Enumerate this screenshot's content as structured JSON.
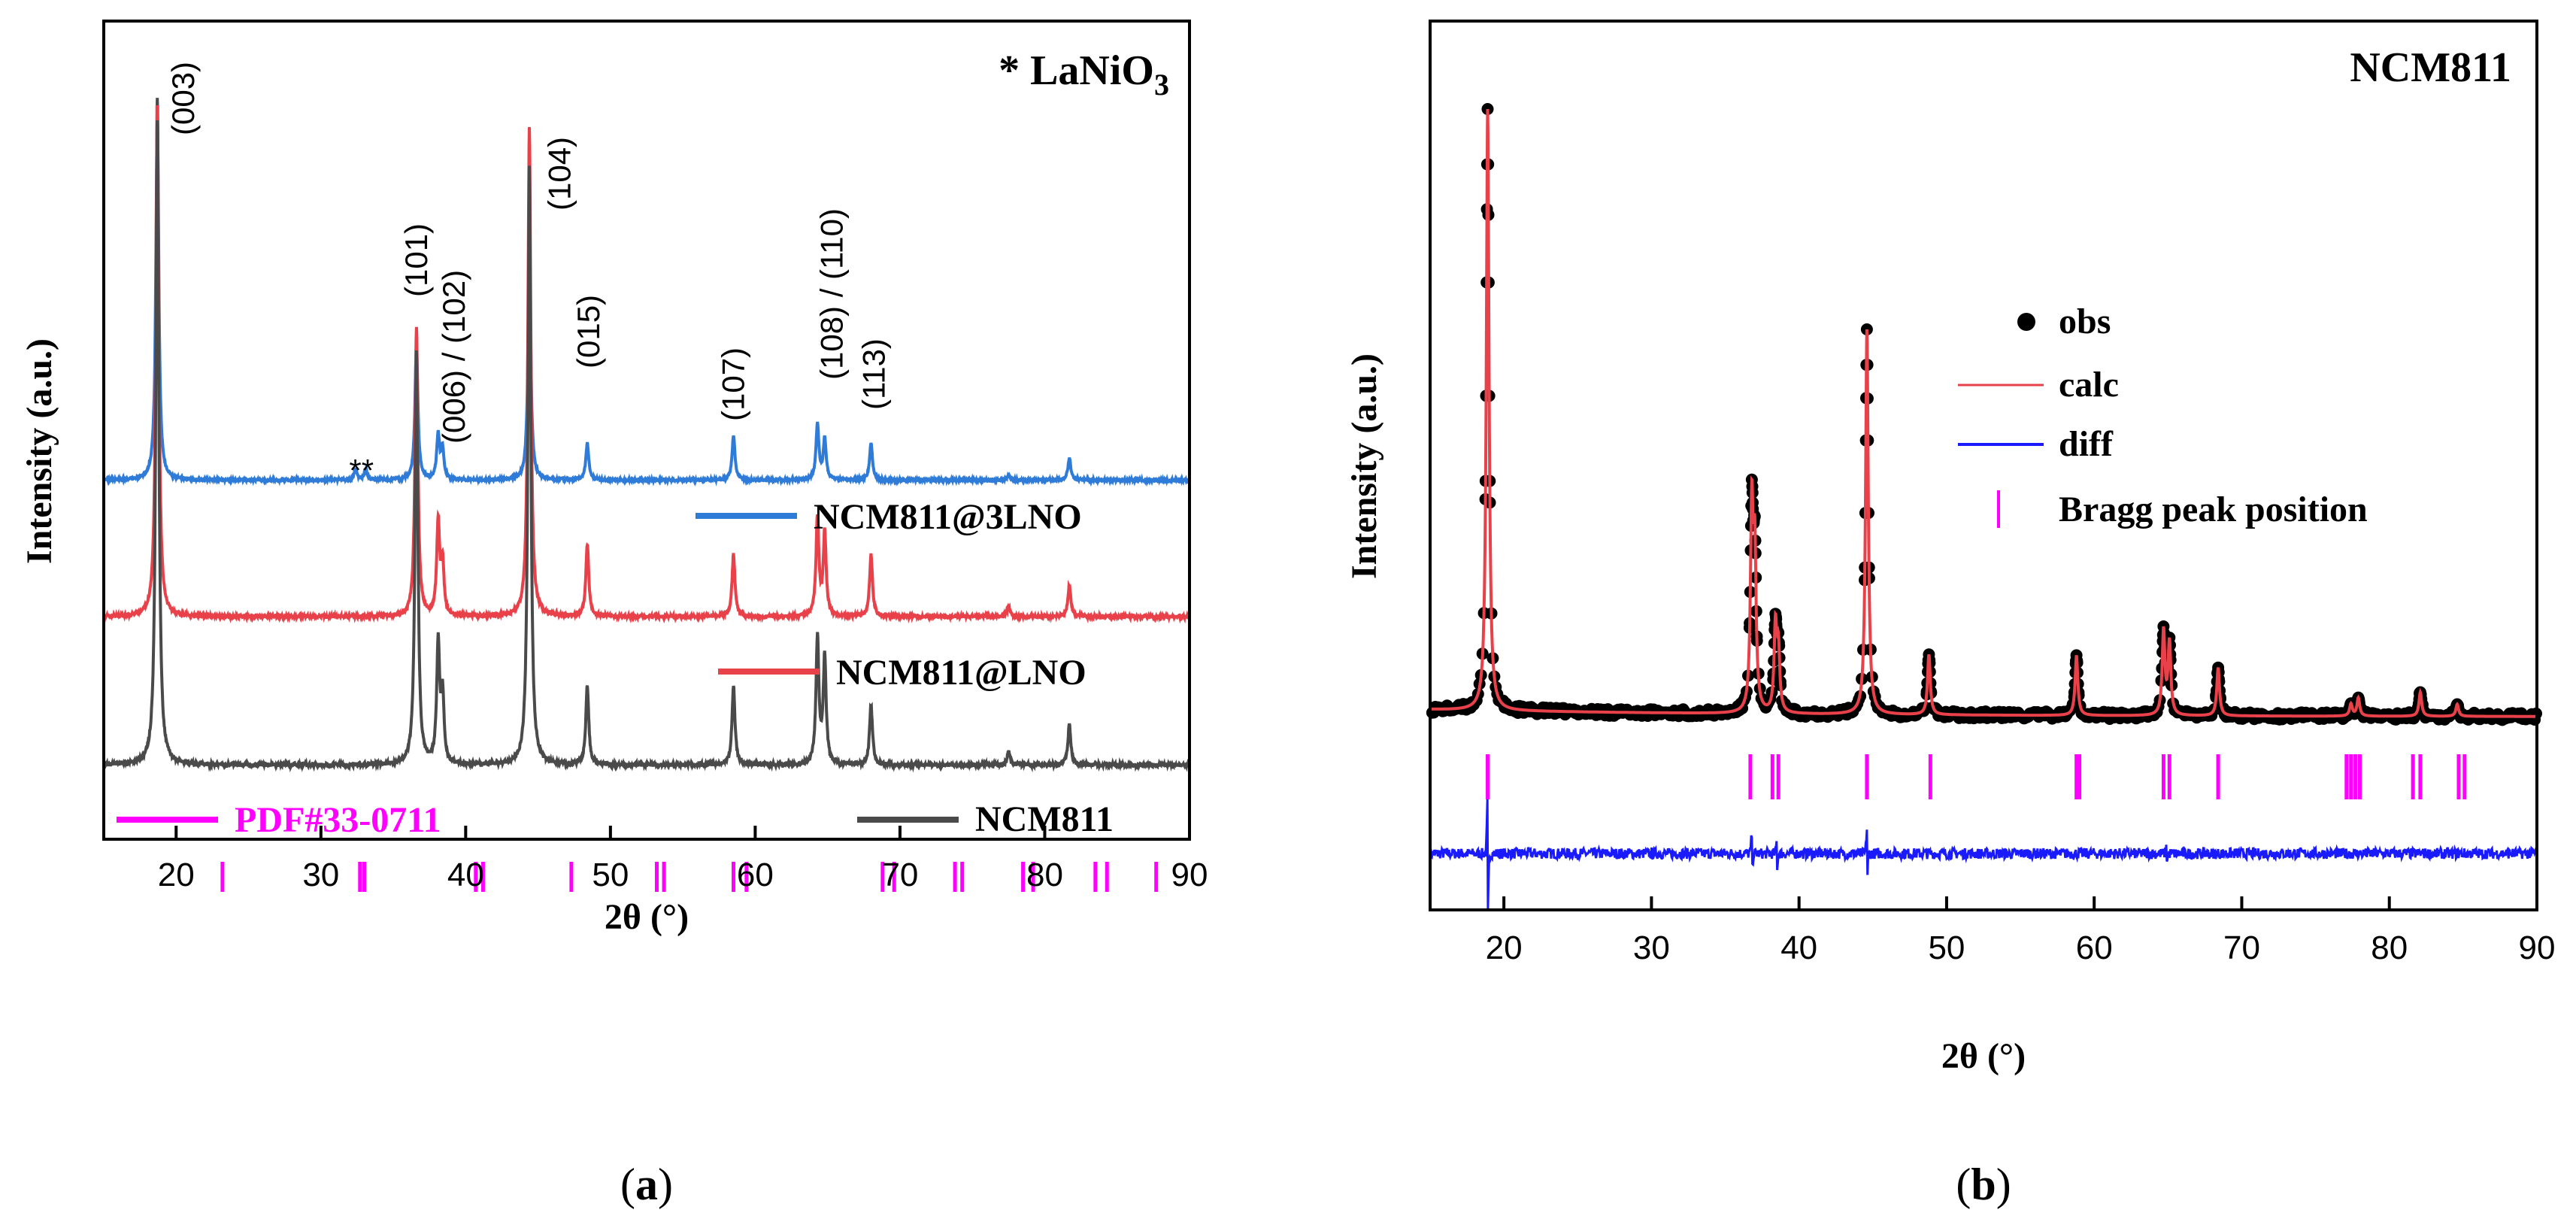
{
  "chart_data": [
    {
      "panel_caption": "(a)",
      "caption_letter": "a",
      "type": "line",
      "title": "* LaNiO3",
      "title_prefix": "* LaNiO",
      "title_subscript": "3",
      "xlabel": "2θ (°)",
      "ylabel": "Intensity (a.u.)",
      "xlim": [
        15,
        90
      ],
      "xticks": [
        20,
        30,
        40,
        50,
        60,
        70,
        80,
        90
      ],
      "y_ticks_shown": false,
      "colors": {
        "NCM811@3LNO": "#2f7bd8",
        "NCM811@LNO": "#e8414a",
        "NCM811": "#4a4a4a",
        "PDF#33-0711": "#ff00ff"
      },
      "series": [
        {
          "name": "NCM811@3LNO",
          "color": "#2f7bd8",
          "offset": 2.0,
          "peaks": [
            [
              18.7,
              1.0
            ],
            [
              32.4,
              0.03
            ],
            [
              33.1,
              0.03
            ],
            [
              36.6,
              0.37
            ],
            [
              38.1,
              0.12
            ],
            [
              38.4,
              0.08
            ],
            [
              44.4,
              0.6
            ],
            [
              48.4,
              0.1
            ],
            [
              58.5,
              0.12
            ],
            [
              64.3,
              0.15
            ],
            [
              64.8,
              0.11
            ],
            [
              68.0,
              0.1
            ],
            [
              77.5,
              0.015
            ],
            [
              81.7,
              0.06
            ]
          ]
        },
        {
          "name": "NCM811@LNO",
          "color": "#e8414a",
          "offset": 1.0,
          "peaks": [
            [
              18.7,
              1.0
            ],
            [
              36.6,
              0.56
            ],
            [
              38.1,
              0.18
            ],
            [
              38.4,
              0.1
            ],
            [
              44.4,
              0.95
            ],
            [
              48.4,
              0.14
            ],
            [
              58.5,
              0.12
            ],
            [
              64.3,
              0.19
            ],
            [
              64.8,
              0.16
            ],
            [
              68.0,
              0.12
            ],
            [
              77.5,
              0.02
            ],
            [
              81.7,
              0.06
            ]
          ]
        },
        {
          "name": "NCM811",
          "color": "#4a4a4a",
          "offset": 0.0,
          "peaks": [
            [
              18.7,
              1.0
            ],
            [
              36.6,
              0.62
            ],
            [
              38.1,
              0.18
            ],
            [
              38.4,
              0.1
            ],
            [
              44.4,
              0.9
            ],
            [
              48.4,
              0.12
            ],
            [
              58.5,
              0.12
            ],
            [
              64.3,
              0.19
            ],
            [
              64.8,
              0.16
            ],
            [
              68.0,
              0.09
            ],
            [
              77.5,
              0.02
            ],
            [
              81.7,
              0.06
            ]
          ]
        }
      ],
      "reference": {
        "name": "PDF#33-0711",
        "color": "#ff00ff",
        "positions": [
          23.2,
          32.7,
          33.0,
          40.7,
          41.2,
          47.3,
          53.2,
          53.7,
          58.5,
          59.4,
          68.8,
          69.6,
          73.8,
          74.3,
          78.5,
          79.2,
          83.5,
          84.3,
          87.7
        ]
      },
      "hkl_labels": [
        {
          "text": "(003)",
          "x": 20.5
        },
        {
          "text": "(101)",
          "x": 36.6
        },
        {
          "text": "(006) / (102)",
          "x": 39.2
        },
        {
          "text": "(104)",
          "x": 46.5
        },
        {
          "text": "(015)",
          "x": 48.5
        },
        {
          "text": "(107)",
          "x": 58.5
        },
        {
          "text": "(108) / (110)",
          "x": 65.3
        },
        {
          "text": "(113)",
          "x": 68.2
        }
      ],
      "asterisk_marker": "**",
      "legend": [
        "NCM811@3LNO",
        "NCM811@LNO",
        "NCM811",
        "PDF#33-0711"
      ]
    },
    {
      "panel_caption": "(b)",
      "caption_letter": "b",
      "type": "scatter",
      "title": "NCM811",
      "xlabel": "2θ (°)",
      "ylabel": "Intensity (a.u.)",
      "xlim": [
        15,
        90
      ],
      "xticks": [
        20,
        30,
        40,
        50,
        60,
        70,
        80,
        90
      ],
      "y_ticks_shown": false,
      "colors": {
        "obs": "#000000",
        "calc": "#e8414a",
        "diff": "#1a1aff",
        "bragg": "#ff00ff"
      },
      "peaks": [
        [
          18.9,
          1.0
        ],
        [
          36.8,
          0.33
        ],
        [
          37.0,
          0.25
        ],
        [
          38.4,
          0.14
        ],
        [
          38.6,
          0.1
        ],
        [
          44.6,
          0.64
        ],
        [
          48.8,
          0.1
        ],
        [
          58.8,
          0.1
        ],
        [
          64.7,
          0.14
        ],
        [
          65.1,
          0.12
        ],
        [
          68.4,
          0.08
        ],
        [
          77.4,
          0.02
        ],
        [
          77.9,
          0.03
        ],
        [
          82.1,
          0.04
        ],
        [
          84.6,
          0.02
        ]
      ],
      "bragg_positions": [
        18.9,
        36.7,
        38.2,
        38.6,
        44.6,
        48.9,
        58.8,
        59.0,
        64.7,
        65.1,
        68.4,
        77.1,
        77.4,
        77.7,
        78.0,
        81.6,
        82.1,
        84.7,
        85.1
      ],
      "diff_spikes": [
        [
          18.9,
          0.09
        ],
        [
          36.8,
          0.03
        ],
        [
          38.5,
          0.02
        ],
        [
          44.6,
          0.04
        ],
        [
          64.9,
          0.01
        ]
      ],
      "legend": [
        "obs",
        "calc",
        "diff",
        "Bragg peak position"
      ]
    }
  ]
}
